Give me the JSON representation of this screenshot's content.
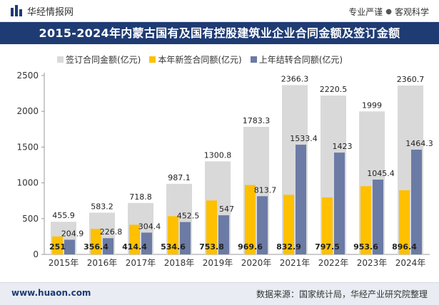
{
  "header": {
    "brand": "华经情报网",
    "slogan_left": "专业严谨",
    "slogan_sep": "●",
    "slogan_right": "客观科学"
  },
  "footer": {
    "site": "www.huaon.com",
    "source": "数据来源：国家统计局，华经产业研究院整理"
  },
  "colors": {
    "total": "#d9d9d9",
    "new": "#ffc000",
    "carry": "#6b7ba5",
    "title_bg": "#1f3b73"
  },
  "chart_data": {
    "type": "bar",
    "title": "2015-2024年内蒙古国有及国有控股建筑业企业合同金额及签订金额",
    "categories": [
      "2015年",
      "2016年",
      "2017年",
      "2018年",
      "2019年",
      "2020年",
      "2021年",
      "2022年",
      "2023年",
      "2024年"
    ],
    "series": [
      {
        "name": "签订合同金额(亿元)",
        "values": [
          455.9,
          583.2,
          718.8,
          987.1,
          1300.8,
          1783.3,
          2366.3,
          2220.5,
          1999,
          2360.7
        ]
      },
      {
        "name": "本年新签合同额(亿元)",
        "values": [
          251,
          356.4,
          414.4,
          534.6,
          753.8,
          969.6,
          832.9,
          797.5,
          953.6,
          896.4
        ]
      },
      {
        "name": "上年结转合同额(亿元)",
        "values": [
          204.9,
          226.8,
          304.4,
          452.5,
          547,
          813.7,
          1533.4,
          1423,
          1045.4,
          1464.3
        ]
      }
    ],
    "yticks": [
      "0",
      "500",
      "1000",
      "1500",
      "2000",
      "2500"
    ],
    "ylim": [
      0,
      2500
    ],
    "xlabel": "",
    "ylabel": ""
  }
}
